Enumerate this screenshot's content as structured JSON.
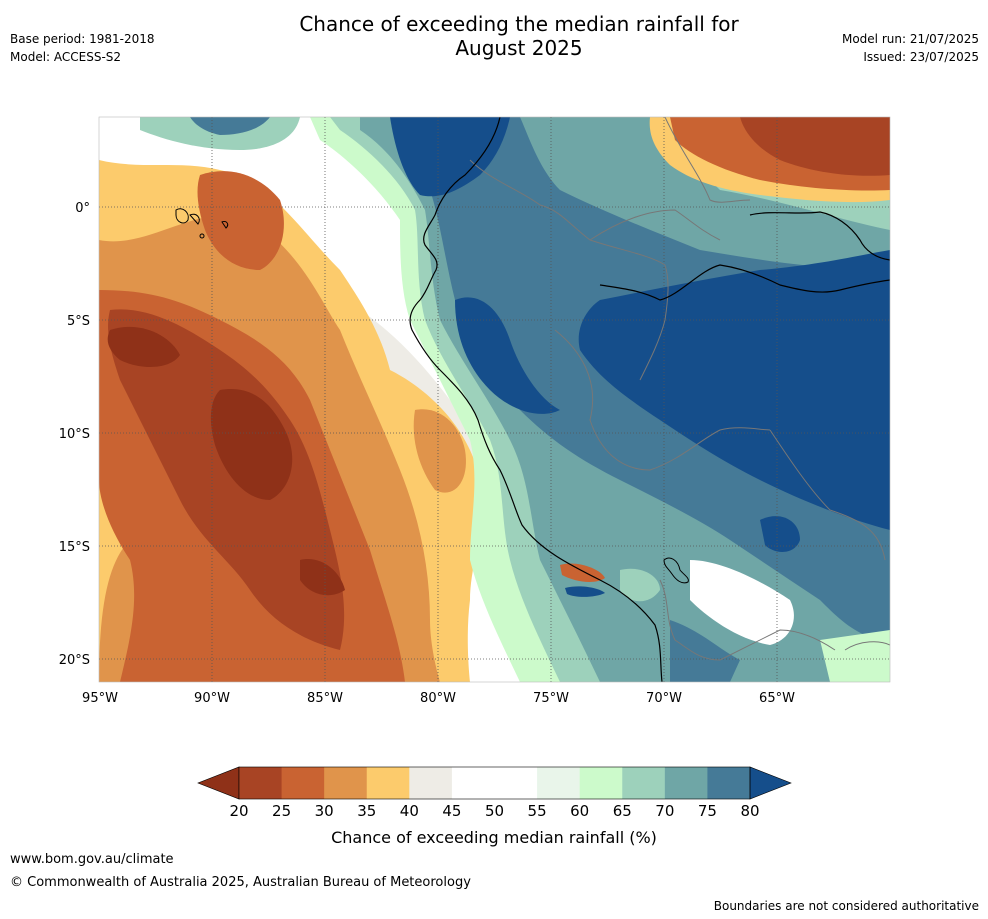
{
  "header": {
    "title_line1": "Chance of exceeding the median rainfall for",
    "title_line2": "August 2025",
    "base_period": "Base period: 1981-2018",
    "model": "Model: ACCESS-S2",
    "model_run": "Model run: 21/07/2025",
    "issued": "Issued: 23/07/2025"
  },
  "map": {
    "lon_ticks": [
      "95°W",
      "90°W",
      "85°W",
      "80°W",
      "75°W",
      "70°W",
      "65°W"
    ],
    "lat_ticks": [
      "0°",
      "5°S",
      "10°S",
      "15°S",
      "20°S"
    ]
  },
  "colorbar": {
    "label": "Chance of exceeding median rainfall (%)",
    "ticks": [
      "20",
      "25",
      "30",
      "35",
      "40",
      "45",
      "50",
      "55",
      "60",
      "65",
      "70",
      "75",
      "80"
    ],
    "below_color": "#8f3118",
    "colors": [
      "#a84424",
      "#c96332",
      "#e0944b",
      "#fccb6c",
      "#eeece6",
      "#ffffff",
      "#ffffff",
      "#e9f5ea",
      "#ccfacb",
      "#9dd1bb",
      "#6fa6a6",
      "#457a97"
    ],
    "above_color": "#154e8b"
  },
  "footer": {
    "url": "www.bom.gov.au/climate",
    "copyright": "© Commonwealth of Australia 2025, Australian Bureau of Meteorology",
    "note": "Boundaries are not considered authoritative"
  }
}
